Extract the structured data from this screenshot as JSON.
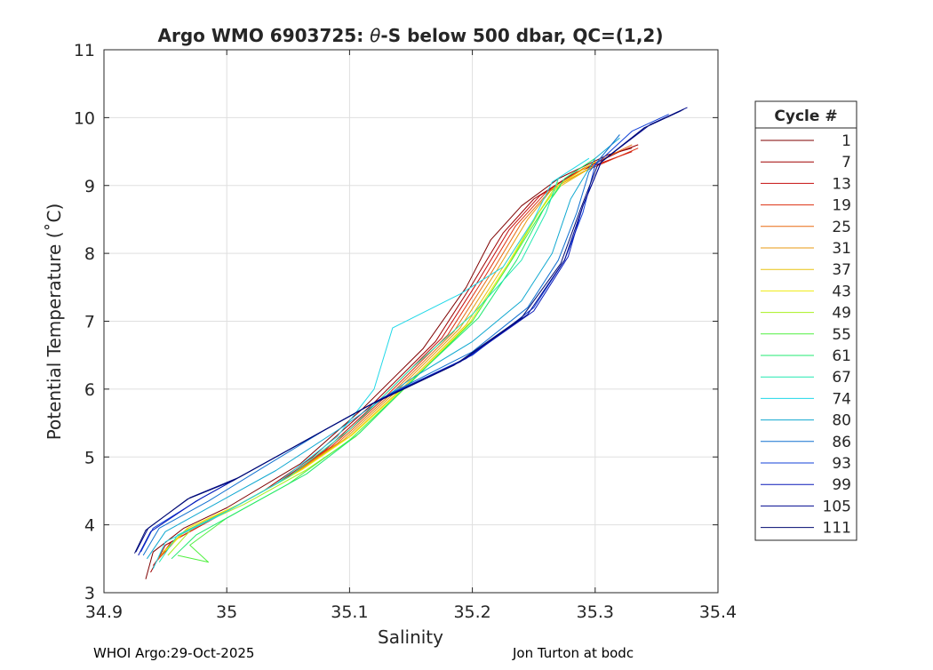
{
  "chart_data": {
    "type": "line",
    "title": "Argo WMO 6903725: θ-S below 500 dbar,  QC=(1,2)",
    "title_parts": {
      "prefix": "Argo WMO 6903725: ",
      "theta": "θ",
      "suffix": "-S below 500 dbar,  QC=(1,2)"
    },
    "xlabel": "Salinity",
    "ylabel": "Potential Temperature (˚C)",
    "xlim": [
      34.9,
      35.4
    ],
    "ylim": [
      3,
      11
    ],
    "xticks": [
      34.9,
      35,
      35.1,
      35.2,
      35.3,
      35.4
    ],
    "xtick_labels": [
      "34.9",
      "35",
      "35.1",
      "35.2",
      "35.3",
      "35.4"
    ],
    "yticks": [
      3,
      4,
      5,
      6,
      7,
      8,
      9,
      10,
      11
    ],
    "ytick_labels": [
      "3",
      "4",
      "5",
      "6",
      "7",
      "8",
      "9",
      "10",
      "11"
    ],
    "grid": true,
    "legend": {
      "title": "Cycle #",
      "placement": "outside-right",
      "entries": [
        {
          "label": "1",
          "color": "#7f0000"
        },
        {
          "label": "7",
          "color": "#a00000"
        },
        {
          "label": "13",
          "color": "#c40c0c"
        },
        {
          "label": "19",
          "color": "#dd3010"
        },
        {
          "label": "25",
          "color": "#e86a10"
        },
        {
          "label": "31",
          "color": "#e89a10"
        },
        {
          "label": "37",
          "color": "#e8c410"
        },
        {
          "label": "43",
          "color": "#f0ec10"
        },
        {
          "label": "49",
          "color": "#a8f020"
        },
        {
          "label": "55",
          "color": "#50f040"
        },
        {
          "label": "61",
          "color": "#20e870"
        },
        {
          "label": "67",
          "color": "#20e8b0"
        },
        {
          "label": "74",
          "color": "#20d8e8"
        },
        {
          "label": "80",
          "color": "#10a8d0"
        },
        {
          "label": "86",
          "color": "#1070d0"
        },
        {
          "label": "93",
          "color": "#1040d8"
        },
        {
          "label": "99",
          "color": "#0818b8"
        },
        {
          "label": "105",
          "color": "#000890"
        },
        {
          "label": "111",
          "color": "#000a70"
        }
      ]
    },
    "series": [
      {
        "color": "#7f0000",
        "points": [
          [
            34.934,
            3.2
          ],
          [
            34.94,
            3.6
          ],
          [
            34.965,
            3.95
          ],
          [
            35.0,
            4.25
          ],
          [
            35.06,
            4.9
          ],
          [
            35.11,
            5.7
          ],
          [
            35.16,
            6.6
          ],
          [
            35.195,
            7.5
          ],
          [
            35.215,
            8.2
          ],
          [
            35.24,
            8.7
          ],
          [
            35.27,
            9.1
          ],
          [
            35.31,
            9.45
          ],
          [
            35.33,
            9.55
          ]
        ]
      },
      {
        "color": "#a00000",
        "points": [
          [
            34.938,
            3.3
          ],
          [
            34.95,
            3.7
          ],
          [
            34.985,
            4.05
          ],
          [
            35.03,
            4.5
          ],
          [
            35.07,
            5.0
          ],
          [
            35.12,
            5.8
          ],
          [
            35.17,
            6.7
          ],
          [
            35.2,
            7.55
          ],
          [
            35.225,
            8.3
          ],
          [
            35.25,
            8.8
          ],
          [
            35.28,
            9.15
          ],
          [
            35.32,
            9.5
          ],
          [
            35.335,
            9.6
          ]
        ]
      },
      {
        "color": "#c40c0c",
        "points": [
          [
            34.94,
            3.4
          ],
          [
            34.955,
            3.75
          ],
          [
            34.99,
            4.1
          ],
          [
            35.04,
            4.6
          ],
          [
            35.08,
            5.1
          ],
          [
            35.125,
            5.85
          ],
          [
            35.175,
            6.75
          ],
          [
            35.205,
            7.6
          ],
          [
            35.23,
            8.35
          ],
          [
            35.255,
            8.85
          ],
          [
            35.285,
            9.2
          ],
          [
            35.33,
            9.5
          ]
        ]
      },
      {
        "color": "#dd3010",
        "points": [
          [
            34.942,
            3.45
          ],
          [
            34.96,
            3.8
          ],
          [
            34.995,
            4.15
          ],
          [
            35.045,
            4.65
          ],
          [
            35.085,
            5.15
          ],
          [
            35.13,
            5.9
          ],
          [
            35.18,
            6.8
          ],
          [
            35.21,
            7.65
          ],
          [
            35.235,
            8.4
          ],
          [
            35.26,
            8.9
          ],
          [
            35.29,
            9.2
          ],
          [
            35.335,
            9.55
          ]
        ]
      },
      {
        "color": "#e86a10",
        "points": [
          [
            34.944,
            3.5
          ],
          [
            34.962,
            3.85
          ],
          [
            35.0,
            4.2
          ],
          [
            35.05,
            4.7
          ],
          [
            35.09,
            5.2
          ],
          [
            35.135,
            5.95
          ],
          [
            35.185,
            6.85
          ],
          [
            35.215,
            7.7
          ],
          [
            35.24,
            8.45
          ],
          [
            35.262,
            8.9
          ],
          [
            35.29,
            9.25
          ],
          [
            35.33,
            9.6
          ]
        ]
      },
      {
        "color": "#e89a10",
        "points": [
          [
            34.946,
            3.55
          ],
          [
            34.965,
            3.9
          ],
          [
            35.005,
            4.25
          ],
          [
            35.055,
            4.75
          ],
          [
            35.095,
            5.25
          ],
          [
            35.14,
            6.0
          ],
          [
            35.19,
            6.9
          ],
          [
            35.22,
            7.75
          ],
          [
            35.245,
            8.5
          ],
          [
            35.265,
            8.95
          ],
          [
            35.295,
            9.25
          ]
        ]
      },
      {
        "color": "#e8c410",
        "points": [
          [
            34.948,
            3.6
          ],
          [
            34.968,
            3.95
          ],
          [
            35.01,
            4.3
          ],
          [
            35.06,
            4.8
          ],
          [
            35.1,
            5.3
          ],
          [
            35.145,
            6.05
          ],
          [
            35.195,
            6.95
          ],
          [
            35.225,
            7.8
          ],
          [
            35.25,
            8.5
          ],
          [
            35.268,
            8.95
          ],
          [
            35.3,
            9.3
          ]
        ]
      },
      {
        "color": "#f0ec10",
        "points": [
          [
            34.95,
            3.62
          ],
          [
            34.97,
            3.97
          ],
          [
            35.012,
            4.32
          ],
          [
            35.062,
            4.82
          ],
          [
            35.102,
            5.32
          ],
          [
            35.148,
            6.08
          ],
          [
            35.198,
            6.98
          ],
          [
            35.228,
            7.82
          ],
          [
            35.252,
            8.55
          ],
          [
            35.27,
            9.0
          ],
          [
            35.3,
            9.35
          ]
        ]
      },
      {
        "color": "#a8f020",
        "points": [
          [
            34.952,
            3.55
          ],
          [
            34.972,
            3.95
          ],
          [
            35.014,
            4.3
          ],
          [
            35.064,
            4.8
          ],
          [
            35.105,
            5.3
          ],
          [
            35.15,
            6.1
          ],
          [
            35.2,
            7.0
          ],
          [
            35.23,
            7.85
          ],
          [
            35.254,
            8.6
          ],
          [
            35.27,
            9.05
          ]
        ]
      },
      {
        "color": "#50f040",
        "points": [
          [
            34.96,
            3.55
          ],
          [
            34.985,
            3.45
          ],
          [
            34.97,
            3.7
          ],
          [
            35.0,
            4.1
          ],
          [
            35.05,
            4.6
          ],
          [
            35.1,
            5.25
          ],
          [
            35.15,
            6.1
          ],
          [
            35.2,
            7.0
          ],
          [
            35.232,
            7.9
          ],
          [
            35.256,
            8.6
          ],
          [
            35.272,
            9.0
          ]
        ]
      },
      {
        "color": "#20e870",
        "points": [
          [
            34.955,
            3.5
          ],
          [
            34.975,
            3.85
          ],
          [
            35.015,
            4.25
          ],
          [
            35.065,
            4.75
          ],
          [
            35.108,
            5.35
          ],
          [
            35.155,
            6.2
          ],
          [
            35.205,
            7.05
          ],
          [
            35.236,
            7.9
          ],
          [
            35.258,
            8.65
          ],
          [
            35.275,
            9.1
          ],
          [
            35.3,
            9.4
          ]
        ]
      },
      {
        "color": "#20e8b0",
        "points": [
          [
            34.945,
            3.45
          ],
          [
            34.96,
            3.85
          ],
          [
            35.0,
            4.2
          ],
          [
            35.05,
            4.7
          ],
          [
            35.1,
            5.4
          ],
          [
            35.15,
            6.3
          ],
          [
            35.2,
            7.1
          ],
          [
            35.24,
            7.9
          ],
          [
            35.26,
            8.6
          ],
          [
            35.27,
            9.1
          ]
        ]
      },
      {
        "color": "#20d8e8",
        "points": [
          [
            34.94,
            3.35
          ],
          [
            34.95,
            3.75
          ],
          [
            34.99,
            4.1
          ],
          [
            35.04,
            4.6
          ],
          [
            35.09,
            5.3
          ],
          [
            35.12,
            6.0
          ],
          [
            35.135,
            6.9
          ],
          [
            35.19,
            7.4
          ],
          [
            35.225,
            7.8
          ],
          [
            35.25,
            8.5
          ],
          [
            35.265,
            9.05
          ],
          [
            35.295,
            9.4
          ]
        ]
      },
      {
        "color": "#10a8d0",
        "points": [
          [
            34.935,
            3.5
          ],
          [
            34.95,
            3.9
          ],
          [
            34.99,
            4.3
          ],
          [
            35.04,
            4.8
          ],
          [
            35.095,
            5.45
          ],
          [
            35.15,
            6.15
          ],
          [
            35.2,
            6.7
          ],
          [
            35.24,
            7.3
          ],
          [
            35.265,
            8.0
          ],
          [
            35.28,
            8.8
          ],
          [
            35.3,
            9.4
          ],
          [
            35.32,
            9.7
          ]
        ]
      },
      {
        "color": "#1070d0",
        "points": [
          [
            34.932,
            3.55
          ],
          [
            34.945,
            3.95
          ],
          [
            34.985,
            4.35
          ],
          [
            35.03,
            4.85
          ],
          [
            35.08,
            5.4
          ],
          [
            35.14,
            6.0
          ],
          [
            35.2,
            6.55
          ],
          [
            35.245,
            7.2
          ],
          [
            35.27,
            7.9
          ],
          [
            35.285,
            8.6
          ],
          [
            35.295,
            9.2
          ],
          [
            35.32,
            9.75
          ]
        ]
      },
      {
        "color": "#1040d8",
        "points": [
          [
            34.93,
            3.6
          ],
          [
            34.94,
            3.95
          ],
          [
            34.98,
            4.4
          ],
          [
            35.02,
            4.8
          ],
          [
            35.07,
            5.3
          ],
          [
            35.13,
            5.9
          ],
          [
            35.2,
            6.5
          ],
          [
            35.25,
            7.2
          ],
          [
            35.275,
            7.9
          ],
          [
            35.29,
            8.6
          ],
          [
            35.3,
            9.3
          ],
          [
            35.33,
            9.8
          ],
          [
            35.36,
            10.05
          ]
        ]
      },
      {
        "color": "#0818b8",
        "points": [
          [
            34.928,
            3.55
          ],
          [
            34.938,
            3.9
          ],
          [
            34.975,
            4.35
          ],
          [
            35.015,
            4.75
          ],
          [
            35.065,
            5.25
          ],
          [
            35.125,
            5.85
          ],
          [
            35.195,
            6.45
          ],
          [
            35.25,
            7.15
          ],
          [
            35.278,
            7.95
          ],
          [
            35.29,
            8.7
          ],
          [
            35.305,
            9.35
          ],
          [
            35.34,
            9.85
          ],
          [
            35.37,
            10.1
          ]
        ]
      },
      {
        "color": "#000890",
        "points": [
          [
            34.926,
            3.6
          ],
          [
            34.936,
            3.95
          ],
          [
            34.97,
            4.4
          ],
          [
            35.01,
            4.7
          ],
          [
            35.06,
            5.2
          ],
          [
            35.12,
            5.8
          ],
          [
            35.19,
            6.4
          ],
          [
            35.245,
            7.1
          ],
          [
            35.275,
            7.9
          ],
          [
            35.29,
            8.7
          ],
          [
            35.305,
            9.35
          ],
          [
            35.345,
            9.9
          ],
          [
            35.375,
            10.15
          ]
        ]
      },
      {
        "color": "#000a70",
        "points": [
          [
            34.925,
            3.58
          ],
          [
            34.934,
            3.92
          ],
          [
            34.968,
            4.38
          ],
          [
            35.005,
            4.65
          ],
          [
            35.055,
            5.15
          ],
          [
            35.115,
            5.75
          ],
          [
            35.185,
            6.35
          ],
          [
            35.24,
            7.05
          ],
          [
            35.272,
            7.85
          ],
          [
            35.288,
            8.65
          ],
          [
            35.302,
            9.3
          ],
          [
            35.34,
            9.85
          ],
          [
            35.372,
            10.12
          ]
        ]
      }
    ]
  },
  "footer": {
    "left": "WHOI Argo:29-Oct-2025",
    "right": "Jon Turton at bodc"
  }
}
